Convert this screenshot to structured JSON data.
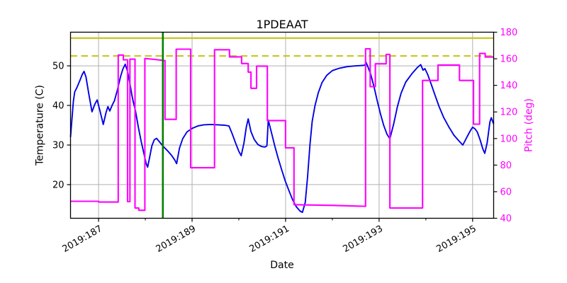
{
  "chart_data": {
    "type": "line",
    "title": "1PDEAAT",
    "xlabel": "Date",
    "ylabel_left": "Temperature (C)",
    "ylabel_right": "Pitch (deg)",
    "xlim": [
      186.4,
      195.45
    ],
    "ylim_left": [
      11.5,
      58.5
    ],
    "ylim_right": [
      40,
      180
    ],
    "grid": true,
    "xticks": [
      {
        "value": 187,
        "label": "2019:187"
      },
      {
        "value": 189,
        "label": "2019:189"
      },
      {
        "value": 191,
        "label": "2019:191"
      },
      {
        "value": 193,
        "label": "2019:193"
      },
      {
        "value": 195,
        "label": "2019:195"
      }
    ],
    "xminor": [
      188,
      190,
      192,
      194
    ],
    "yticks_left": [
      20,
      30,
      40,
      50
    ],
    "yticks_right": [
      40,
      60,
      80,
      100,
      120,
      140,
      160,
      180
    ],
    "colors": {
      "temperature": "#0000e8",
      "pitch": "#ff00ff",
      "limit": "#c8c81e",
      "time_marker": "#008000",
      "grid": "#b0b0b0",
      "right_axis_text": "#ff00ff"
    },
    "limit_lines": [
      {
        "name": "yellow-limit",
        "axis": "left",
        "value": 57.0,
        "style": "solid"
      },
      {
        "name": "planning-limit",
        "axis": "left",
        "value": 52.5,
        "style": "dashed"
      }
    ],
    "vlines": [
      {
        "name": "time-marker",
        "value": 188.375
      }
    ],
    "series": [
      {
        "name": "temperature",
        "axis": "left",
        "points": [
          [
            186.4,
            32.0
          ],
          [
            186.43,
            36.5
          ],
          [
            186.46,
            41.0
          ],
          [
            186.49,
            43.4
          ],
          [
            186.54,
            44.6
          ],
          [
            186.6,
            46.3
          ],
          [
            186.65,
            47.8
          ],
          [
            186.69,
            48.6
          ],
          [
            186.73,
            47.2
          ],
          [
            186.79,
            43.0
          ],
          [
            186.86,
            38.4
          ],
          [
            186.92,
            40.3
          ],
          [
            186.97,
            41.4
          ],
          [
            187.03,
            38.6
          ],
          [
            187.1,
            35.2
          ],
          [
            187.16,
            38.2
          ],
          [
            187.2,
            39.7
          ],
          [
            187.24,
            38.6
          ],
          [
            187.3,
            40.3
          ],
          [
            187.34,
            41.2
          ],
          [
            187.4,
            43.8
          ],
          [
            187.47,
            47.3
          ],
          [
            187.52,
            49.2
          ],
          [
            187.57,
            50.4
          ],
          [
            187.62,
            48.6
          ],
          [
            187.67,
            45.5
          ],
          [
            187.71,
            42.8
          ],
          [
            187.74,
            41.0
          ],
          [
            187.79,
            38.6
          ],
          [
            187.85,
            34.5
          ],
          [
            187.91,
            31.0
          ],
          [
            187.97,
            27.8
          ],
          [
            188.02,
            25.2
          ],
          [
            188.05,
            24.4
          ],
          [
            188.09,
            26.8
          ],
          [
            188.14,
            29.8
          ],
          [
            188.19,
            31.3
          ],
          [
            188.24,
            31.7
          ],
          [
            188.31,
            30.7
          ],
          [
            188.38,
            29.7
          ],
          [
            188.47,
            28.6
          ],
          [
            188.56,
            27.4
          ],
          [
            188.63,
            26.2
          ],
          [
            188.67,
            25.3
          ],
          [
            188.73,
            29.2
          ],
          [
            188.8,
            31.6
          ],
          [
            188.89,
            33.3
          ],
          [
            189.0,
            34.2
          ],
          [
            189.12,
            34.8
          ],
          [
            189.25,
            35.1
          ],
          [
            189.4,
            35.2
          ],
          [
            189.55,
            35.1
          ],
          [
            189.7,
            35.0
          ],
          [
            189.79,
            34.8
          ],
          [
            189.86,
            32.8
          ],
          [
            189.93,
            30.5
          ],
          [
            190.0,
            28.4
          ],
          [
            190.05,
            27.3
          ],
          [
            190.11,
            30.5
          ],
          [
            190.16,
            34.5
          ],
          [
            190.2,
            36.6
          ],
          [
            190.26,
            33.4
          ],
          [
            190.33,
            31.4
          ],
          [
            190.41,
            30.1
          ],
          [
            190.49,
            29.6
          ],
          [
            190.56,
            29.5
          ],
          [
            190.6,
            29.8
          ],
          [
            190.63,
            36.3
          ],
          [
            190.7,
            33.0
          ],
          [
            190.77,
            29.7
          ],
          [
            190.84,
            26.7
          ],
          [
            190.91,
            24.0
          ],
          [
            190.99,
            21.0
          ],
          [
            191.07,
            18.5
          ],
          [
            191.15,
            16.2
          ],
          [
            191.23,
            14.4
          ],
          [
            191.31,
            13.3
          ],
          [
            191.36,
            13.0
          ],
          [
            191.42,
            15.5
          ],
          [
            191.47,
            22.0
          ],
          [
            191.52,
            30.0
          ],
          [
            191.57,
            36.0
          ],
          [
            191.63,
            40.0
          ],
          [
            191.7,
            43.2
          ],
          [
            191.78,
            45.8
          ],
          [
            191.88,
            47.6
          ],
          [
            192.0,
            48.8
          ],
          [
            192.15,
            49.4
          ],
          [
            192.32,
            49.8
          ],
          [
            192.5,
            50.0
          ],
          [
            192.65,
            50.1
          ],
          [
            192.7,
            50.2
          ],
          [
            192.72,
            50.9
          ],
          [
            192.76,
            49.8
          ],
          [
            192.82,
            47.9
          ],
          [
            192.89,
            44.8
          ],
          [
            192.96,
            41.2
          ],
          [
            193.03,
            37.8
          ],
          [
            193.1,
            34.9
          ],
          [
            193.17,
            32.7
          ],
          [
            193.23,
            31.6
          ],
          [
            193.31,
            35.2
          ],
          [
            193.39,
            39.6
          ],
          [
            193.47,
            43.1
          ],
          [
            193.57,
            45.9
          ],
          [
            193.7,
            48.0
          ],
          [
            193.82,
            49.6
          ],
          [
            193.89,
            50.3
          ],
          [
            193.94,
            48.9
          ],
          [
            193.98,
            49.3
          ],
          [
            194.04,
            47.8
          ],
          [
            194.11,
            45.5
          ],
          [
            194.19,
            42.8
          ],
          [
            194.28,
            39.8
          ],
          [
            194.38,
            37.0
          ],
          [
            194.49,
            34.6
          ],
          [
            194.6,
            32.5
          ],
          [
            194.71,
            31.0
          ],
          [
            194.79,
            30.0
          ],
          [
            194.87,
            31.8
          ],
          [
            194.94,
            33.4
          ],
          [
            195.0,
            34.5
          ],
          [
            195.05,
            34.1
          ],
          [
            195.1,
            33.3
          ],
          [
            195.16,
            31.3
          ],
          [
            195.22,
            29.0
          ],
          [
            195.26,
            27.9
          ],
          [
            195.31,
            30.5
          ],
          [
            195.37,
            35.8
          ],
          [
            195.4,
            36.9
          ],
          [
            195.45,
            35.3
          ]
        ]
      },
      {
        "name": "pitch",
        "axis": "right",
        "points": [
          [
            186.4,
            52.8
          ],
          [
            187.0,
            52.8
          ],
          [
            187.0,
            52.2
          ],
          [
            187.42,
            52.2
          ],
          [
            187.42,
            162.8
          ],
          [
            187.53,
            162.8
          ],
          [
            187.53,
            159.2
          ],
          [
            187.62,
            159.2
          ],
          [
            187.62,
            52.5
          ],
          [
            187.67,
            52.5
          ],
          [
            187.67,
            159.7
          ],
          [
            187.78,
            159.7
          ],
          [
            187.78,
            47.7
          ],
          [
            187.86,
            47.7
          ],
          [
            187.86,
            46.0
          ],
          [
            187.99,
            46.0
          ],
          [
            187.99,
            160.2
          ],
          [
            188.2,
            159.5
          ],
          [
            188.42,
            158.6
          ],
          [
            188.42,
            114.4
          ],
          [
            188.66,
            114.4
          ],
          [
            188.66,
            167.2
          ],
          [
            188.97,
            167.2
          ],
          [
            188.97,
            78.0
          ],
          [
            189.48,
            78.0
          ],
          [
            189.48,
            166.8
          ],
          [
            189.8,
            166.8
          ],
          [
            189.8,
            161.4
          ],
          [
            190.06,
            161.4
          ],
          [
            190.06,
            156.4
          ],
          [
            190.2,
            156.4
          ],
          [
            190.2,
            150.0
          ],
          [
            190.26,
            150.0
          ],
          [
            190.26,
            137.8
          ],
          [
            190.38,
            137.8
          ],
          [
            190.38,
            154.5
          ],
          [
            190.61,
            154.5
          ],
          [
            190.61,
            113.5
          ],
          [
            191.0,
            113.5
          ],
          [
            191.0,
            93.0
          ],
          [
            191.18,
            93.0
          ],
          [
            191.18,
            50.2
          ],
          [
            192.0,
            49.7
          ],
          [
            192.71,
            49.0
          ],
          [
            192.71,
            167.5
          ],
          [
            192.81,
            167.5
          ],
          [
            192.81,
            139.0
          ],
          [
            192.92,
            139.0
          ],
          [
            192.92,
            156.2
          ],
          [
            193.15,
            156.2
          ],
          [
            193.15,
            163.3
          ],
          [
            193.23,
            163.3
          ],
          [
            193.23,
            47.7
          ],
          [
            193.93,
            47.7
          ],
          [
            193.93,
            143.7
          ],
          [
            194.26,
            143.7
          ],
          [
            194.26,
            155.3
          ],
          [
            194.72,
            155.3
          ],
          [
            194.72,
            143.7
          ],
          [
            195.02,
            143.7
          ],
          [
            195.02,
            110.8
          ],
          [
            195.15,
            110.8
          ],
          [
            195.15,
            164.0
          ],
          [
            195.27,
            164.0
          ],
          [
            195.27,
            161.3
          ],
          [
            195.45,
            161.3
          ]
        ]
      }
    ]
  }
}
